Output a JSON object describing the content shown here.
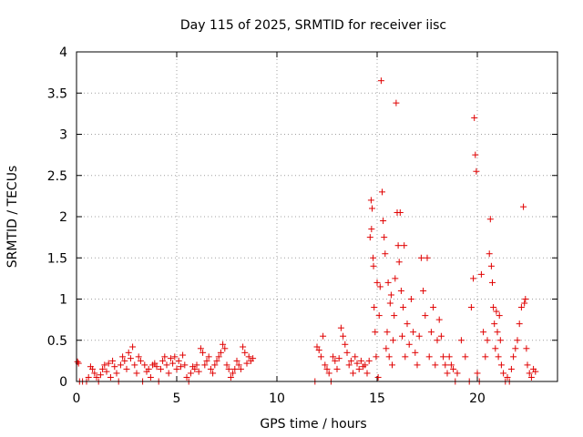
{
  "chart_data": {
    "type": "scatter",
    "title": "Day 115 of 2025, SRMTID for receiver iisc",
    "xlabel": "GPS time / hours",
    "ylabel": "SRMTID / TECUs",
    "xlim": [
      0,
      24
    ],
    "ylim": [
      0,
      4
    ],
    "xticks": [
      0,
      5,
      10,
      15,
      20
    ],
    "xtick_labels": [
      "0",
      "5",
      "10",
      "15",
      "20"
    ],
    "yticks": [
      0,
      0.5,
      1,
      1.5,
      2,
      2.5,
      3,
      3.5,
      4
    ],
    "ytick_labels": [
      "0",
      "0.5",
      "1",
      "1.5",
      "2",
      "2.5",
      "3",
      "3.5",
      "4"
    ],
    "grid": true,
    "marker": "+",
    "color": "#e00000",
    "series": [
      {
        "name": "SRMTID",
        "points": [
          [
            0.05,
            0.24
          ],
          [
            0.1,
            0.22
          ],
          [
            0.15,
            0.0
          ],
          [
            0.3,
            0.0
          ],
          [
            0.5,
            0.0
          ],
          [
            0.6,
            0.05
          ],
          [
            0.7,
            0.18
          ],
          [
            0.8,
            0.15
          ],
          [
            0.9,
            0.1
          ],
          [
            1.0,
            0.05
          ],
          [
            1.1,
            0.0
          ],
          [
            1.2,
            0.08
          ],
          [
            1.3,
            0.15
          ],
          [
            1.4,
            0.2
          ],
          [
            1.5,
            0.12
          ],
          [
            1.6,
            0.22
          ],
          [
            1.7,
            0.05
          ],
          [
            1.8,
            0.25
          ],
          [
            1.9,
            0.18
          ],
          [
            2.0,
            0.1
          ],
          [
            2.1,
            0.0
          ],
          [
            2.2,
            0.2
          ],
          [
            2.3,
            0.3
          ],
          [
            2.4,
            0.25
          ],
          [
            2.5,
            0.15
          ],
          [
            2.6,
            0.35
          ],
          [
            2.7,
            0.28
          ],
          [
            2.8,
            0.42
          ],
          [
            2.9,
            0.2
          ],
          [
            3.0,
            0.1
          ],
          [
            3.1,
            0.3
          ],
          [
            3.2,
            0.25
          ],
          [
            3.3,
            0.0
          ],
          [
            3.4,
            0.2
          ],
          [
            3.5,
            0.12
          ],
          [
            3.6,
            0.15
          ],
          [
            3.7,
            0.05
          ],
          [
            3.8,
            0.2
          ],
          [
            3.9,
            0.22
          ],
          [
            4.0,
            0.18
          ],
          [
            4.1,
            0.0
          ],
          [
            4.2,
            0.15
          ],
          [
            4.3,
            0.25
          ],
          [
            4.4,
            0.3
          ],
          [
            4.5,
            0.2
          ],
          [
            4.6,
            0.1
          ],
          [
            4.7,
            0.28
          ],
          [
            4.8,
            0.22
          ],
          [
            4.9,
            0.3
          ],
          [
            5.0,
            0.15
          ],
          [
            5.1,
            0.25
          ],
          [
            5.2,
            0.18
          ],
          [
            5.3,
            0.32
          ],
          [
            5.4,
            0.2
          ],
          [
            5.5,
            0.05
          ],
          [
            5.6,
            0.0
          ],
          [
            5.7,
            0.1
          ],
          [
            5.8,
            0.18
          ],
          [
            5.9,
            0.15
          ],
          [
            6.0,
            0.2
          ],
          [
            6.1,
            0.12
          ],
          [
            6.2,
            0.4
          ],
          [
            6.3,
            0.35
          ],
          [
            6.4,
            0.2
          ],
          [
            6.5,
            0.25
          ],
          [
            6.6,
            0.3
          ],
          [
            6.7,
            0.15
          ],
          [
            6.8,
            0.1
          ],
          [
            6.9,
            0.2
          ],
          [
            7.0,
            0.25
          ],
          [
            7.1,
            0.3
          ],
          [
            7.2,
            0.35
          ],
          [
            7.3,
            0.45
          ],
          [
            7.4,
            0.4
          ],
          [
            7.5,
            0.2
          ],
          [
            7.6,
            0.15
          ],
          [
            7.7,
            0.05
          ],
          [
            7.8,
            0.1
          ],
          [
            7.9,
            0.15
          ],
          [
            8.0,
            0.25
          ],
          [
            8.1,
            0.2
          ],
          [
            8.2,
            0.15
          ],
          [
            8.3,
            0.42
          ],
          [
            8.4,
            0.35
          ],
          [
            8.5,
            0.22
          ],
          [
            8.6,
            0.3
          ],
          [
            8.7,
            0.25
          ],
          [
            8.8,
            0.28
          ],
          [
            11.9,
            0.0
          ],
          [
            12.0,
            0.42
          ],
          [
            12.1,
            0.38
          ],
          [
            12.2,
            0.3
          ],
          [
            12.3,
            0.55
          ],
          [
            12.4,
            0.2
          ],
          [
            12.5,
            0.15
          ],
          [
            12.6,
            0.1
          ],
          [
            12.7,
            0.0
          ],
          [
            12.8,
            0.3
          ],
          [
            12.9,
            0.25
          ],
          [
            13.0,
            0.15
          ],
          [
            13.1,
            0.28
          ],
          [
            13.2,
            0.65
          ],
          [
            13.3,
            0.55
          ],
          [
            13.4,
            0.45
          ],
          [
            13.5,
            0.35
          ],
          [
            13.6,
            0.2
          ],
          [
            13.7,
            0.25
          ],
          [
            13.8,
            0.1
          ],
          [
            13.9,
            0.3
          ],
          [
            14.0,
            0.22
          ],
          [
            14.1,
            0.15
          ],
          [
            14.2,
            0.25
          ],
          [
            14.3,
            0.18
          ],
          [
            14.4,
            0.2
          ],
          [
            14.5,
            0.1
          ],
          [
            14.6,
            0.25
          ],
          [
            14.65,
            1.75
          ],
          [
            14.7,
            2.2
          ],
          [
            14.72,
            1.85
          ],
          [
            14.75,
            2.1
          ],
          [
            14.8,
            1.5
          ],
          [
            14.82,
            1.4
          ],
          [
            14.85,
            0.9
          ],
          [
            14.9,
            0.6
          ],
          [
            14.95,
            0.3
          ],
          [
            15.0,
            1.2
          ],
          [
            15.05,
            0.05
          ],
          [
            15.1,
            0.8
          ],
          [
            15.15,
            1.15
          ],
          [
            15.2,
            3.65
          ],
          [
            15.25,
            2.3
          ],
          [
            15.3,
            1.95
          ],
          [
            15.35,
            1.75
          ],
          [
            15.4,
            1.55
          ],
          [
            15.45,
            0.4
          ],
          [
            15.5,
            0.6
          ],
          [
            15.55,
            1.2
          ],
          [
            15.6,
            0.3
          ],
          [
            15.65,
            0.95
          ],
          [
            15.7,
            1.05
          ],
          [
            15.75,
            0.2
          ],
          [
            15.8,
            0.5
          ],
          [
            15.85,
            0.8
          ],
          [
            15.9,
            1.25
          ],
          [
            15.95,
            3.38
          ],
          [
            16.0,
            2.05
          ],
          [
            16.05,
            1.65
          ],
          [
            16.1,
            1.45
          ],
          [
            16.15,
            2.05
          ],
          [
            16.2,
            1.1
          ],
          [
            16.25,
            0.55
          ],
          [
            16.3,
            0.9
          ],
          [
            16.35,
            1.65
          ],
          [
            16.4,
            0.3
          ],
          [
            16.5,
            0.7
          ],
          [
            16.6,
            0.45
          ],
          [
            16.7,
            1.0
          ],
          [
            16.8,
            0.6
          ],
          [
            16.9,
            0.35
          ],
          [
            17.0,
            0.2
          ],
          [
            17.1,
            0.55
          ],
          [
            17.2,
            1.5
          ],
          [
            17.3,
            1.1
          ],
          [
            17.4,
            0.8
          ],
          [
            17.5,
            1.5
          ],
          [
            17.6,
            0.3
          ],
          [
            17.7,
            0.6
          ],
          [
            17.8,
            0.9
          ],
          [
            17.9,
            0.2
          ],
          [
            18.0,
            0.5
          ],
          [
            18.1,
            0.75
          ],
          [
            18.2,
            0.55
          ],
          [
            18.3,
            0.3
          ],
          [
            18.4,
            0.2
          ],
          [
            18.5,
            0.1
          ],
          [
            18.6,
            0.3
          ],
          [
            18.7,
            0.2
          ],
          [
            18.8,
            0.15
          ],
          [
            18.9,
            0.0
          ],
          [
            19.0,
            0.1
          ],
          [
            19.2,
            0.5
          ],
          [
            19.4,
            0.3
          ],
          [
            19.6,
            0.0
          ],
          [
            19.7,
            0.9
          ],
          [
            19.8,
            1.25
          ],
          [
            19.85,
            3.2
          ],
          [
            19.9,
            2.75
          ],
          [
            19.95,
            2.55
          ],
          [
            20.0,
            0.1
          ],
          [
            20.1,
            0.0
          ],
          [
            20.2,
            1.3
          ],
          [
            20.3,
            0.6
          ],
          [
            20.4,
            0.3
          ],
          [
            20.5,
            0.5
          ],
          [
            20.6,
            1.55
          ],
          [
            20.65,
            1.97
          ],
          [
            20.7,
            1.4
          ],
          [
            20.75,
            1.2
          ],
          [
            20.8,
            0.9
          ],
          [
            20.85,
            0.7
          ],
          [
            20.9,
            0.4
          ],
          [
            20.95,
            0.85
          ],
          [
            21.0,
            0.6
          ],
          [
            21.05,
            0.3
          ],
          [
            21.1,
            0.8
          ],
          [
            21.15,
            0.5
          ],
          [
            21.2,
            0.2
          ],
          [
            21.3,
            0.1
          ],
          [
            21.4,
            0.0
          ],
          [
            21.5,
            0.05
          ],
          [
            21.6,
            0.0
          ],
          [
            21.7,
            0.15
          ],
          [
            21.8,
            0.3
          ],
          [
            21.9,
            0.4
          ],
          [
            22.0,
            0.5
          ],
          [
            22.1,
            0.7
          ],
          [
            22.2,
            0.9
          ],
          [
            22.3,
            2.12
          ],
          [
            22.35,
            0.95
          ],
          [
            22.4,
            1.0
          ],
          [
            22.45,
            0.4
          ],
          [
            22.5,
            0.2
          ],
          [
            22.6,
            0.1
          ],
          [
            22.7,
            0.05
          ],
          [
            22.8,
            0.15
          ],
          [
            22.9,
            0.12
          ]
        ]
      }
    ]
  }
}
